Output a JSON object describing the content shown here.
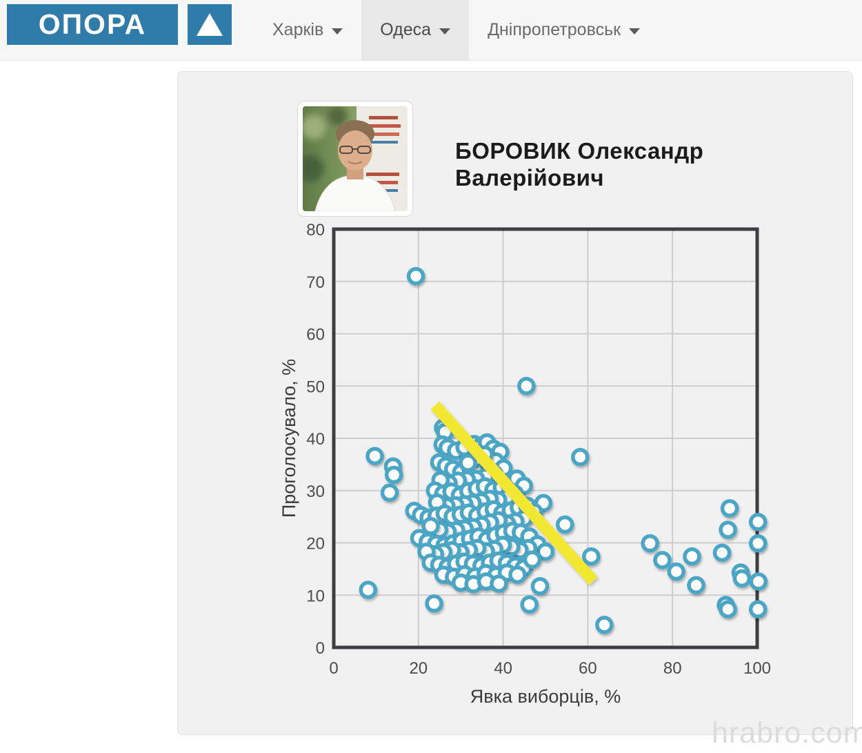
{
  "header": {
    "logo_text": "ОПОРА",
    "nav": [
      {
        "label": "Харків",
        "selected": false
      },
      {
        "label": "Одеса",
        "selected": true
      },
      {
        "label": "Дніпропетровськ",
        "selected": false
      }
    ]
  },
  "icons": {
    "logo_triangle": "▲",
    "nav_caret": "▾"
  },
  "profile": {
    "name_line1": "БОРОВИК Олександр",
    "name_line2": "Валерійович"
  },
  "watermark": "hrabro.com",
  "colors": {
    "brand_blue": "#2f7ba9",
    "point_stroke": "#4ba6c6",
    "trend_yellow": "#f2e832",
    "plot_border": "#3e3e40",
    "grid": "#cdcdcd"
  },
  "chart_data": {
    "type": "scatter",
    "title": "",
    "xlabel": "Явка виборців, %",
    "ylabel": "Проголосувало, %",
    "xlim": [
      0,
      100
    ],
    "ylim": [
      0,
      80
    ],
    "x_ticks": [
      0,
      20,
      40,
      60,
      80,
      100
    ],
    "y_ticks": [
      0,
      10,
      20,
      30,
      40,
      50,
      60,
      70,
      80
    ],
    "grid": true,
    "legend": false,
    "point_color": "#4ba6c6",
    "trend_line": {
      "color": "#f2e832",
      "x1": 23.9,
      "y1": 46.3,
      "x2": 61.3,
      "y2": 12.7
    },
    "points": [
      [
        19.4,
        71
      ],
      [
        45.5,
        50
      ],
      [
        9.7,
        36.6
      ],
      [
        14,
        34.6
      ],
      [
        14.2,
        33
      ],
      [
        13.2,
        29.6
      ],
      [
        8.1,
        11
      ],
      [
        23.7,
        8.4
      ],
      [
        46.2,
        8.2
      ],
      [
        48.7,
        11.7
      ],
      [
        63.9,
        4.3
      ],
      [
        58.2,
        36.4
      ],
      [
        54.6,
        23.5
      ],
      [
        60.8,
        17.4
      ],
      [
        49.5,
        27.6
      ],
      [
        74.7,
        19.9
      ],
      [
        77.6,
        16.7
      ],
      [
        80.9,
        14.5
      ],
      [
        84.6,
        17.4
      ],
      [
        85.6,
        11.9
      ],
      [
        91.7,
        18.1
      ],
      [
        93.5,
        26.6
      ],
      [
        93.1,
        22.5
      ],
      [
        96.1,
        14.3
      ],
      [
        96.4,
        13.2
      ],
      [
        100.2,
        24
      ],
      [
        100.2,
        19.9
      ],
      [
        100.3,
        12.6
      ],
      [
        92.6,
        8.1
      ],
      [
        93.1,
        7.3
      ],
      [
        100.2,
        7.3
      ],
      [
        25.8,
        42
      ],
      [
        26.3,
        41.2
      ],
      [
        25.7,
        38.8
      ],
      [
        26.9,
        38.2
      ],
      [
        28.9,
        37.6
      ],
      [
        30.9,
        38.3
      ],
      [
        33.2,
        38.9
      ],
      [
        34.8,
        38.5
      ],
      [
        36.2,
        39.2
      ],
      [
        37.7,
        38
      ],
      [
        39.3,
        37.4
      ],
      [
        24.9,
        35.4
      ],
      [
        26.5,
        34.7
      ],
      [
        28.2,
        34.1
      ],
      [
        30.1,
        33.5
      ],
      [
        32.4,
        33.9
      ],
      [
        34.3,
        34.5
      ],
      [
        36.7,
        34.9
      ],
      [
        38.2,
        35.6
      ],
      [
        40.1,
        34.3
      ],
      [
        35.6,
        36.9
      ],
      [
        33.7,
        36.1
      ],
      [
        31.7,
        35.3
      ],
      [
        37.9,
        33.2
      ],
      [
        35.8,
        32.6
      ],
      [
        33.6,
        32.2
      ],
      [
        31.4,
        32.1
      ],
      [
        29.3,
        31.9
      ],
      [
        27.1,
        31.4
      ],
      [
        25.2,
        32
      ],
      [
        23.9,
        30
      ],
      [
        25.9,
        29.4
      ],
      [
        27.8,
        29.8
      ],
      [
        29.8,
        29.1
      ],
      [
        31.8,
        29.9
      ],
      [
        33.8,
        30.4
      ],
      [
        35.7,
        30.8
      ],
      [
        37.7,
        30.1
      ],
      [
        39.7,
        30.6
      ],
      [
        41.5,
        31.2
      ],
      [
        43.2,
        32.3
      ],
      [
        44.9,
        30.9
      ],
      [
        42.8,
        29.4
      ],
      [
        40.8,
        28.6
      ],
      [
        38.8,
        28.2
      ],
      [
        36.8,
        28.4
      ],
      [
        34.8,
        27.9
      ],
      [
        32.8,
        27.6
      ],
      [
        30.8,
        27.4
      ],
      [
        28.7,
        27.2
      ],
      [
        26.6,
        27
      ],
      [
        24.4,
        27.7
      ],
      [
        19,
        26.1
      ],
      [
        20.6,
        25.3
      ],
      [
        22.4,
        24.8
      ],
      [
        24.3,
        25.2
      ],
      [
        26.2,
        25.6
      ],
      [
        28.1,
        25
      ],
      [
        30,
        25.4
      ],
      [
        31.9,
        25.8
      ],
      [
        33.9,
        25.2
      ],
      [
        35.9,
        26
      ],
      [
        37.8,
        26.4
      ],
      [
        39.8,
        25.7
      ],
      [
        41.8,
        26.2
      ],
      [
        43.7,
        26.8
      ],
      [
        45.7,
        27.1
      ],
      [
        47.3,
        25.9
      ],
      [
        44.9,
        24.6
      ],
      [
        42.9,
        24.1
      ],
      [
        40.9,
        23.7
      ],
      [
        38.9,
        24.3
      ],
      [
        36.9,
        23.9
      ],
      [
        34.9,
        23.4
      ],
      [
        32.9,
        23
      ],
      [
        30.9,
        22.7
      ],
      [
        28.9,
        22.4
      ],
      [
        26.9,
        22.1
      ],
      [
        24.9,
        22.5
      ],
      [
        22.9,
        23.2
      ],
      [
        20.2,
        20.9
      ],
      [
        22.2,
        20.2
      ],
      [
        24.2,
        19.8
      ],
      [
        26.2,
        19.5
      ],
      [
        28.2,
        19.9
      ],
      [
        30.2,
        20.4
      ],
      [
        32.2,
        20.8
      ],
      [
        34.2,
        21.2
      ],
      [
        36.2,
        20.6
      ],
      [
        38.2,
        21.4
      ],
      [
        40.2,
        21.9
      ],
      [
        42.2,
        22.3
      ],
      [
        44.2,
        22
      ],
      [
        46.2,
        21.2
      ],
      [
        48.1,
        19.7
      ],
      [
        50,
        18.3
      ],
      [
        45.9,
        19
      ],
      [
        43.9,
        18.6
      ],
      [
        41.9,
        19.2
      ],
      [
        39.9,
        19.6
      ],
      [
        37.9,
        18.8
      ],
      [
        35.9,
        18.4
      ],
      [
        33.9,
        19
      ],
      [
        31.9,
        18.6
      ],
      [
        29.9,
        18.2
      ],
      [
        27.9,
        18.6
      ],
      [
        25.9,
        18.2
      ],
      [
        23.9,
        17.8
      ],
      [
        21.9,
        18.3
      ],
      [
        22.9,
        16.2
      ],
      [
        24.9,
        15.8
      ],
      [
        26.9,
        15.4
      ],
      [
        28.9,
        16
      ],
      [
        30.9,
        16.4
      ],
      [
        32.9,
        16
      ],
      [
        34.9,
        15.6
      ],
      [
        36.9,
        16.2
      ],
      [
        38.9,
        16.6
      ],
      [
        40.9,
        16.1
      ],
      [
        42.9,
        15.6
      ],
      [
        44.9,
        15.2
      ],
      [
        46.9,
        16.8
      ],
      [
        25.9,
        13.9
      ],
      [
        28.4,
        13.5
      ],
      [
        30.9,
        14
      ],
      [
        33.4,
        13.6
      ],
      [
        35.9,
        14.2
      ],
      [
        38.4,
        13.8
      ],
      [
        40.9,
        14.3
      ],
      [
        43.4,
        13.9
      ],
      [
        30,
        12.4
      ],
      [
        33,
        12.1
      ],
      [
        36,
        12.6
      ],
      [
        39,
        12.2
      ]
    ]
  }
}
